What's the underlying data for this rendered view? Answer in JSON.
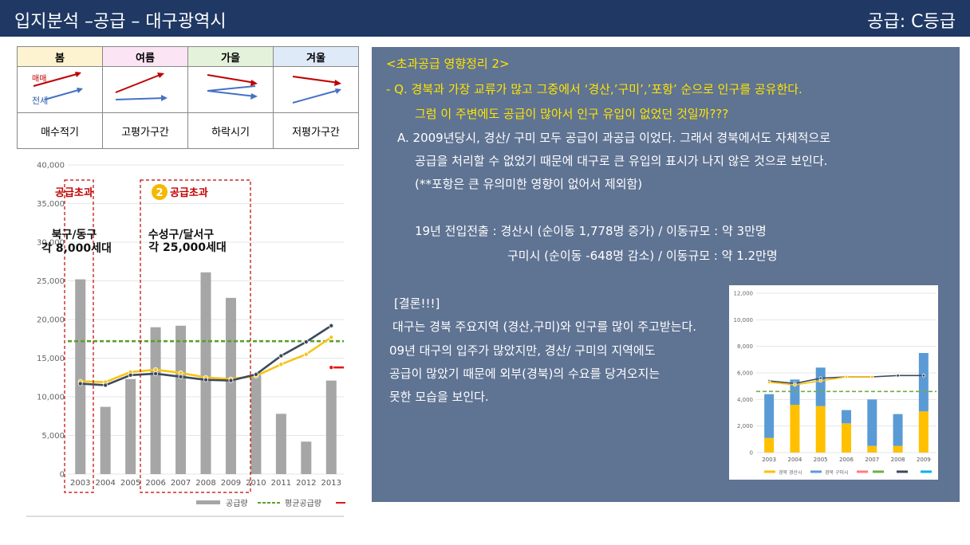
{
  "header": {
    "title": "입지분석 –공급 – 대구광역시",
    "grade": "공급: C등급"
  },
  "season_table": {
    "headers": [
      "봄",
      "여름",
      "가을",
      "겨울"
    ],
    "header_colors": [
      "#fdf3d0",
      "#fbe4f4",
      "#e4f2dc",
      "#deeaf8"
    ],
    "legend_labels": [
      "매매",
      "전세"
    ],
    "labels": [
      "매수적기",
      "고평가구간",
      "하락시기",
      "저평가구간"
    ]
  },
  "main_chart": {
    "annotations": [
      "공급초과",
      "공급초과",
      "북구/동구",
      "각 8,000세대",
      "수성구/달서구",
      "각 25,000세대"
    ],
    "marker": "2"
  },
  "notes": {
    "title": "<초과공급 영향정리 2>",
    "q1": "- Q. 경북과 가장 교류가 많고 그중에서 ‘경산,’구미’,’포항’ 순으로 인구를 공유한다.",
    "q2": "그럼 이 주변에도 공급이 많아서 인구 유입이 없었던 것일까???",
    "a1": "A. 2009년당시, 경산/ 구미 모두 공급이 과공급 이었다.  그래서 경북에서도 자체적으로",
    "a2": "공급을 처리할 수 없었기 때문에 대구로 큰 유입의 표시가 나지 않은 것으로 보인다.",
    "a3": "(**포항은 큰 유의미한 영향이 없어서 제외함)",
    "m1": "19년 전입전출 : 경산시 (순이동 1,778명 증가) / 이동규모 : 약 3만명",
    "m2": "구미시 (순이동 -648명 감소) / 이동규모 : 약 1.2만명",
    "c0": "[결론!!!]",
    "c1": "대구는 경북 주요지역 (경산,구미)와 인구를 많이 주고받는다.",
    "c2": "09년 대구의 입주가 많았지만, 경산/ 구미의 지역에도",
    "c3": "공급이 많았기 때문에 외부(경북)의 수요를 당겨오지는",
    "c4": "못한 모습을 보인다."
  },
  "chart_data": [
    {
      "type": "bar",
      "categories": [
        "2003",
        "2004",
        "2005",
        "2006",
        "2007",
        "2008",
        "2009",
        "2010",
        "2011",
        "2012",
        "2013"
      ],
      "ylim": [
        0,
        40000
      ],
      "yticks": [
        0,
        5000,
        10000,
        15000,
        20000,
        25000,
        30000,
        35000,
        40000
      ],
      "ytick_labels": [
        "0",
        "5,000",
        "10,000",
        "15,000",
        "20,000",
        "25,000",
        "30,000",
        "35,000",
        "40,000"
      ],
      "series": [
        {
          "name": "공급량",
          "type": "bar",
          "color": "#a6a6a6",
          "values": [
            25200,
            8700,
            12300,
            19000,
            19200,
            26100,
            22800,
            12800,
            7800,
            4200,
            12100
          ]
        },
        {
          "name": "평균공급량",
          "type": "line-dashed",
          "color": "#5aa02c",
          "values": [
            17200,
            17200,
            17200,
            17200,
            17200,
            17200,
            17200,
            17200,
            17200,
            17200,
            17200
          ]
        },
        {
          "type": "line",
          "color": "#f5c518",
          "values": [
            12000,
            11900,
            13200,
            13500,
            13100,
            12500,
            12300,
            12700,
            14200,
            15500,
            17700
          ]
        },
        {
          "type": "line",
          "color": "#3d4a5c",
          "values": [
            11700,
            11500,
            12800,
            13000,
            12600,
            12200,
            12100,
            12900,
            15300,
            17100,
            19200
          ]
        },
        {
          "type": "line",
          "color": "#e0191b",
          "values": [
            null,
            null,
            null,
            null,
            null,
            null,
            null,
            null,
            null,
            null,
            13800
          ]
        }
      ]
    },
    {
      "type": "bar",
      "categories": [
        "2003",
        "2004",
        "2005",
        "2006",
        "2007",
        "2008",
        "2009"
      ],
      "ylim": [
        0,
        12000
      ],
      "yticks": [
        0,
        2000,
        4000,
        6000,
        8000,
        10000,
        12000
      ],
      "ytick_labels": [
        "0",
        "2,000",
        "4,000",
        "6,000",
        "8,000",
        "10,000",
        "12,000"
      ],
      "series": [
        {
          "name": "경북 경산시",
          "type": "stacked-bar",
          "color": "#ffc000",
          "values": [
            1100,
            3600,
            3500,
            2200,
            500,
            500,
            3100
          ]
        },
        {
          "name": "경북 구미시",
          "type": "stacked-bar",
          "color": "#5b9bd5",
          "values": [
            3300,
            1900,
            2900,
            1000,
            3500,
            2400,
            4400
          ]
        },
        {
          "type": "line",
          "color": "#3d4a5c",
          "values": [
            5400,
            5200,
            5600,
            5700,
            5700,
            5800,
            5800
          ]
        },
        {
          "type": "line",
          "color": "#ffc000",
          "values": [
            5300,
            5100,
            5400,
            5700,
            5700,
            null,
            null
          ]
        },
        {
          "type": "line-dashed",
          "color": "#70ad47",
          "values": [
            4600,
            4600,
            4600,
            4600,
            4600,
            4600,
            4600
          ]
        }
      ],
      "legend_colors": [
        "#ffc000",
        "#5b9bd5",
        "#ff7c80",
        "#70ad47",
        "#3d4a5c",
        "#00b0f0"
      ]
    }
  ]
}
